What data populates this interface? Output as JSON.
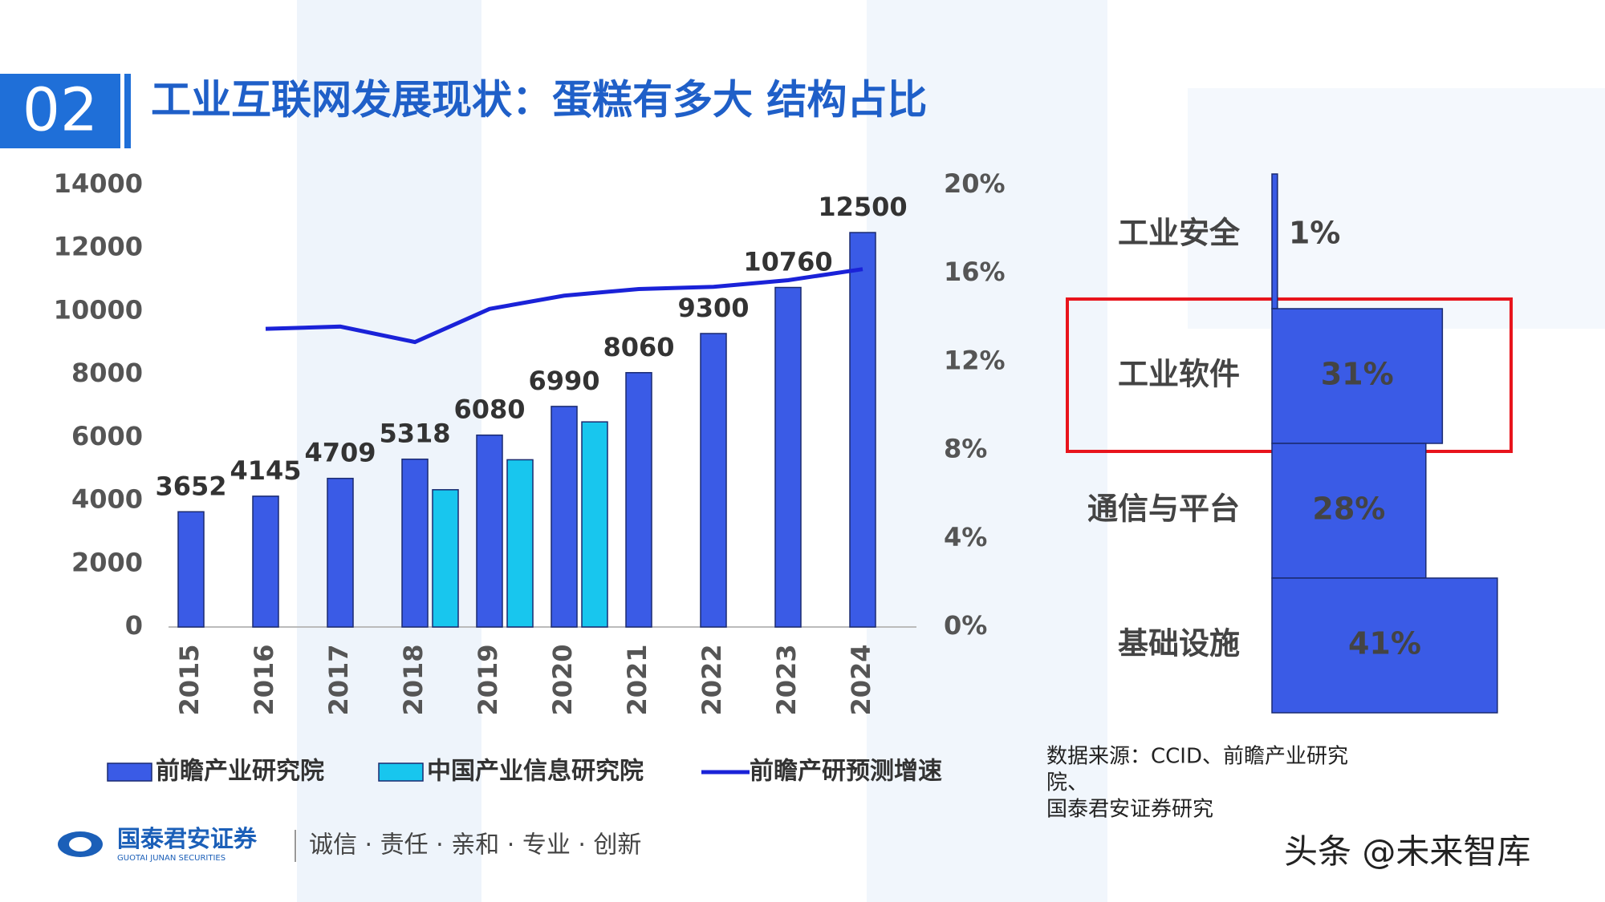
{
  "header": {
    "section": "02",
    "title": "工业互联网发展现状：蛋糕有多大 结构占比"
  },
  "footer": {
    "logo": "国泰君安证券",
    "logo_en": "GUOTAI JUNAN SECURITIES",
    "slogan": "诚信 · 责任 · 亲和 · 专业 · 创新",
    "watermark": "头条 @未来智库"
  },
  "source": [
    "数据来源：CCID、前瞻产业研究",
    "院、",
    "国泰君安证券研究"
  ],
  "chart_data": [
    {
      "type": "bar",
      "categories": [
        "2015",
        "2016",
        "2017",
        "2018",
        "2019",
        "2020",
        "2021",
        "2022",
        "2023",
        "2024"
      ],
      "series": [
        {
          "name": "前瞻产业研究院",
          "color": "#3a5be6",
          "values": [
            3652,
            4145,
            4709,
            5318,
            6080,
            6990,
            8060,
            9300,
            10760,
            12500
          ],
          "label_colors": [
            "#333333",
            "#333333",
            "#333333",
            "#333333",
            "#333333",
            "#e00000",
            "#333333",
            "#333333",
            "#333333",
            "#333333"
          ]
        },
        {
          "name": "中国产业信息研究院",
          "color": "#18c6ee",
          "values": [
            null,
            null,
            null,
            4350,
            5300,
            6500,
            null,
            null,
            null,
            null
          ]
        },
        {
          "name": "前瞻产研预测增速",
          "type": "line",
          "axis": "y2",
          "color": "#1a22d8",
          "values": [
            null,
            13.5,
            13.6,
            12.9,
            14.4,
            15.0,
            15.3,
            15.4,
            15.7,
            16.2
          ]
        }
      ],
      "ylim": [
        0,
        14000
      ],
      "yticks": [
        0,
        2000,
        4000,
        6000,
        8000,
        10000,
        12000,
        14000
      ],
      "y2lim": [
        0,
        20
      ],
      "y2ticks": [
        {
          "value": 0,
          "label": "0%"
        },
        {
          "value": 4,
          "label": "4%"
        },
        {
          "value": 8,
          "label": "8%"
        },
        {
          "value": 12,
          "label": "12%"
        },
        {
          "value": 16,
          "label": "16%"
        },
        {
          "value": 20,
          "label": "20%"
        }
      ],
      "legend": "bottom",
      "grid": false
    },
    {
      "type": "barh",
      "categories": [
        "工业安全",
        "工业软件",
        "通信与平台",
        "基础设施"
      ],
      "values": [
        1,
        31,
        28,
        41
      ],
      "value_labels": [
        "1%",
        "31%",
        "28%",
        "41%"
      ],
      "color": "#3a5be6"
    }
  ]
}
